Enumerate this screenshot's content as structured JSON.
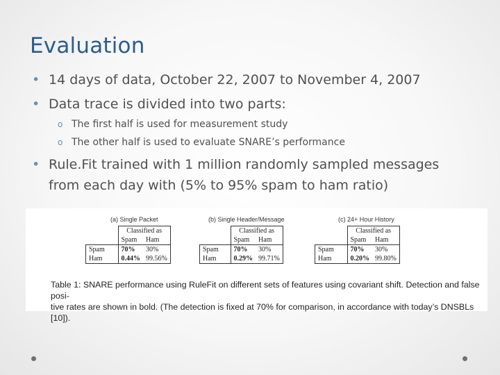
{
  "slide": {
    "title": "Evaluation",
    "bullets": [
      "14 days of data, October 22, 2007 to November 4, 2007",
      "Data trace is divided into two parts:",
      "Rule.Fit trained with 1 million randomly sampled messages",
      "from each day with (5% to 95% spam to ham ratio)"
    ],
    "sub_bullets": [
      "The first half is used for measurement study",
      "The other half is used to evaluate SNARE’s performance"
    ],
    "bullet_marker": "•",
    "sub_marker": "o"
  },
  "figure": {
    "tables": [
      {
        "label": "(a) Single Packet",
        "header": "Classified as",
        "cols": [
          "Spam",
          "Ham"
        ],
        "rows": [
          {
            "label": "Spam",
            "values": [
              "70%",
              "30%"
            ]
          },
          {
            "label": "Ham",
            "values": [
              "0.44%",
              "99.56%"
            ]
          }
        ]
      },
      {
        "label": "(b) Single Header/Message",
        "header": "Classified as",
        "cols": [
          "Spam",
          "Ham"
        ],
        "rows": [
          {
            "label": "Spam",
            "values": [
              "70%",
              "30%"
            ]
          },
          {
            "label": "Ham",
            "values": [
              "0.29%",
              "99.71%"
            ]
          }
        ]
      },
      {
        "label": "(c) 24+ Hour History",
        "header": "Classified as",
        "cols": [
          "Spam",
          "Ham"
        ],
        "rows": [
          {
            "label": "Spam",
            "values": [
              "70%",
              "30%"
            ]
          },
          {
            "label": "Ham",
            "values": [
              "0.20%",
              "99.80%"
            ]
          }
        ]
      }
    ],
    "caption_line1": "Table 1: SNARE performance using RuleFit on different sets of features using covariant shift. Detection and false posi-",
    "caption_line2": "tive rates are shown in bold. (The detection is fixed at 70% for comparison, in accordance with today’s DNSBLs [10])."
  }
}
